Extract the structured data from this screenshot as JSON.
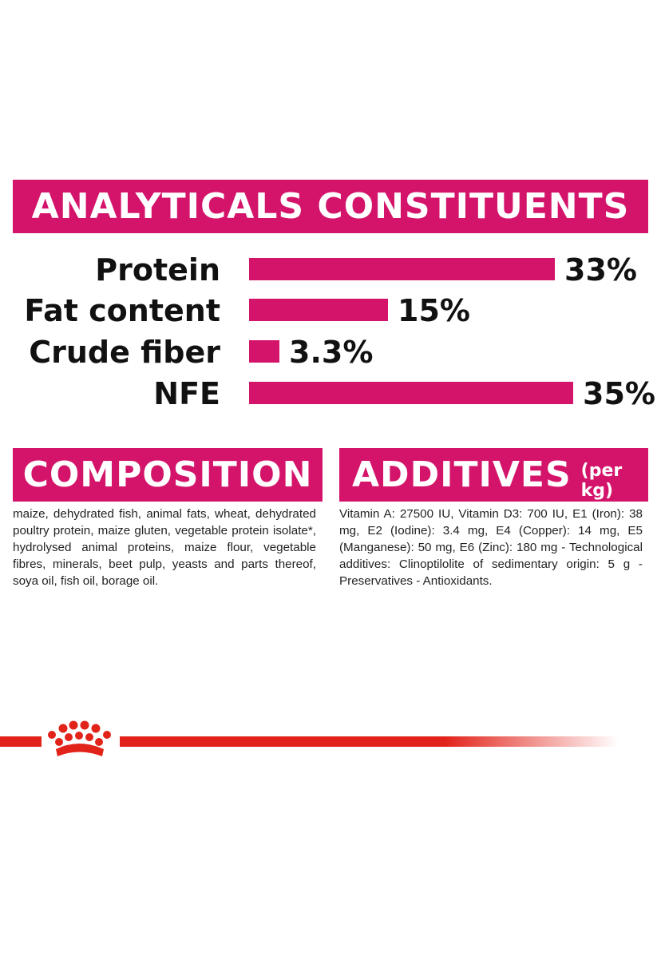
{
  "header": {
    "title": "ANALYTICALS CONSTITUENTS"
  },
  "constituents": [
    {
      "label": "Protein",
      "value_text": "33%",
      "value": 33
    },
    {
      "label": "Fat content",
      "value_text": "15%",
      "value": 15
    },
    {
      "label": "Crude fiber",
      "value_text": "3.3%",
      "value": 3.3
    },
    {
      "label": "NFE",
      "value_text": "35%",
      "value": 35
    }
  ],
  "composition": {
    "title": "COMPOSITION",
    "text": "maize, dehydrated fish, animal fats, wheat, dehydrated poultry protein, maize gluten, vegetable protein isolate*, hydrolysed animal proteins, maize flour, vegetable fibres, minerals, beet pulp, yeasts and parts thereof, soya oil, fish oil, borage oil."
  },
  "additives": {
    "title": "ADDITIVES",
    "subtitle": "(per kg)",
    "text": "Vitamin A: 27500 IU, Vitamin D3: 700 IU, E1 (Iron): 38 mg, E2 (Iodine): 3.4 mg, E4 (Copper): 14 mg, E5 (Manganese): 50 mg, E6 (Zinc): 180 mg - Technological additives: Clinoptilolite of sedimentary origin: 5 g - Preservatives - Antioxidants."
  },
  "colors": {
    "accent": "#d4146b",
    "brand_red": "#e2231a"
  },
  "logo": {
    "icon": "crown-icon"
  }
}
